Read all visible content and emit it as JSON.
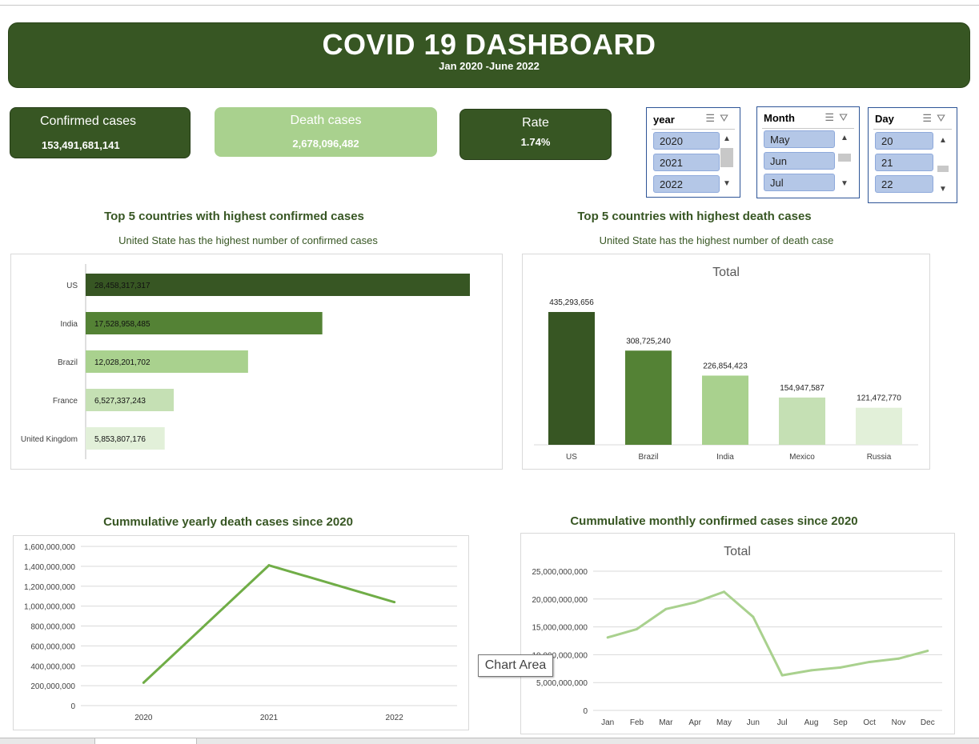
{
  "header": {
    "title": "COVID 19 DASHBOARD",
    "subtitle": "Jan 2020 -June 2022"
  },
  "kpis": [
    {
      "label": "Confirmed cases",
      "value": "153,491,681,141"
    },
    {
      "label": "Death cases",
      "value": "2,678,096,482"
    },
    {
      "label": "Rate",
      "value": "1.74%"
    }
  ],
  "slicers": {
    "year": {
      "title": "year",
      "items": [
        "2020",
        "2021",
        "2022"
      ]
    },
    "month": {
      "title": "Month",
      "items": [
        "May",
        "Jun",
        "Jul"
      ]
    },
    "day": {
      "title": "Day",
      "items": [
        "20",
        "21",
        "22"
      ]
    }
  },
  "colors": {
    "dark_green": "#375623",
    "mid_green": "#548235",
    "light_green": "#a9d18e",
    "pale_green": "#c5e0b4",
    "palest_green": "#e2f0d9",
    "slicer_item": "#b4c7e7"
  },
  "icons": {
    "multi_select": "multi-select-icon",
    "clear_filter": "clear-filter-icon"
  },
  "charts": {
    "confirmed_bar": {
      "title": "Top 5 countries with highest confirmed cases",
      "subtitle": "United State has the highest number of confirmed cases"
    },
    "death_col": {
      "title": "Top 5 countries with highest death cases",
      "subtitle": "United State has the highest number of death case",
      "inner_title": "Total"
    },
    "yearly_line": {
      "title": "Cummulative yearly death cases since 2020"
    },
    "monthly_line": {
      "title": "Cummulative monthly confirmed cases since 2020",
      "inner_title": "Total"
    }
  },
  "chart_data": [
    {
      "type": "bar",
      "orientation": "horizontal",
      "categories": [
        "US",
        "India",
        "Brazil",
        "France",
        "United Kingdom"
      ],
      "values": [
        28458317317,
        17528958485,
        12028201702,
        6527337243,
        5853807176
      ],
      "labels": [
        "28,458,317,317",
        "17,528,958,485",
        "12,028,201,702",
        "6,527,337,243",
        "5,853,807,176"
      ],
      "colors": [
        "#375623",
        "#548235",
        "#a9d18e",
        "#c5e0b4",
        "#e2f0d9"
      ],
      "title": "Top 5 countries with highest confirmed cases",
      "subtitle": "United State has the highest number of confirmed cases",
      "grid": false
    },
    {
      "type": "bar",
      "orientation": "vertical",
      "categories": [
        "US",
        "Brazil",
        "India",
        "Mexico",
        "Russia"
      ],
      "values": [
        435293656,
        308725240,
        226854423,
        154947587,
        121472770
      ],
      "labels": [
        "435,293,656",
        "308,725,240",
        "226,854,423",
        "154,947,587",
        "121,472,770"
      ],
      "colors": [
        "#375623",
        "#548235",
        "#a9d18e",
        "#c5e0b4",
        "#e2f0d9"
      ],
      "title": "Total",
      "grid": false
    },
    {
      "type": "line",
      "x": [
        "2020",
        "2021",
        "2022"
      ],
      "values": [
        230000000,
        1410000000,
        1040000000
      ],
      "ylim": [
        0,
        1600000000
      ],
      "yticks": [
        "0",
        "200,000,000",
        "400,000,000",
        "600,000,000",
        "800,000,000",
        "1,000,000,000",
        "1,200,000,000",
        "1,400,000,000",
        "1,600,000,000"
      ],
      "title": "Cummulative yearly death cases since 2020",
      "color": "#70ad47",
      "grid": true
    },
    {
      "type": "line",
      "x": [
        "Jan",
        "Feb",
        "Mar",
        "Apr",
        "May",
        "Jun",
        "Jul",
        "Aug",
        "Sep",
        "Oct",
        "Nov",
        "Dec"
      ],
      "values": [
        13100000000,
        14600000000,
        18200000000,
        19400000000,
        21300000000,
        16800000000,
        6300000000,
        7200000000,
        7700000000,
        8700000000,
        9300000000,
        10700000000
      ],
      "ylim": [
        0,
        25000000000
      ],
      "yticks": [
        "0",
        "5,000,000,000",
        "10,000,000,000",
        "15,000,000,000",
        "20,000,000,000",
        "25,000,000,000"
      ],
      "title": "Total",
      "color": "#a9d18e",
      "grid": true
    }
  ],
  "tooltip": "Chart Area"
}
